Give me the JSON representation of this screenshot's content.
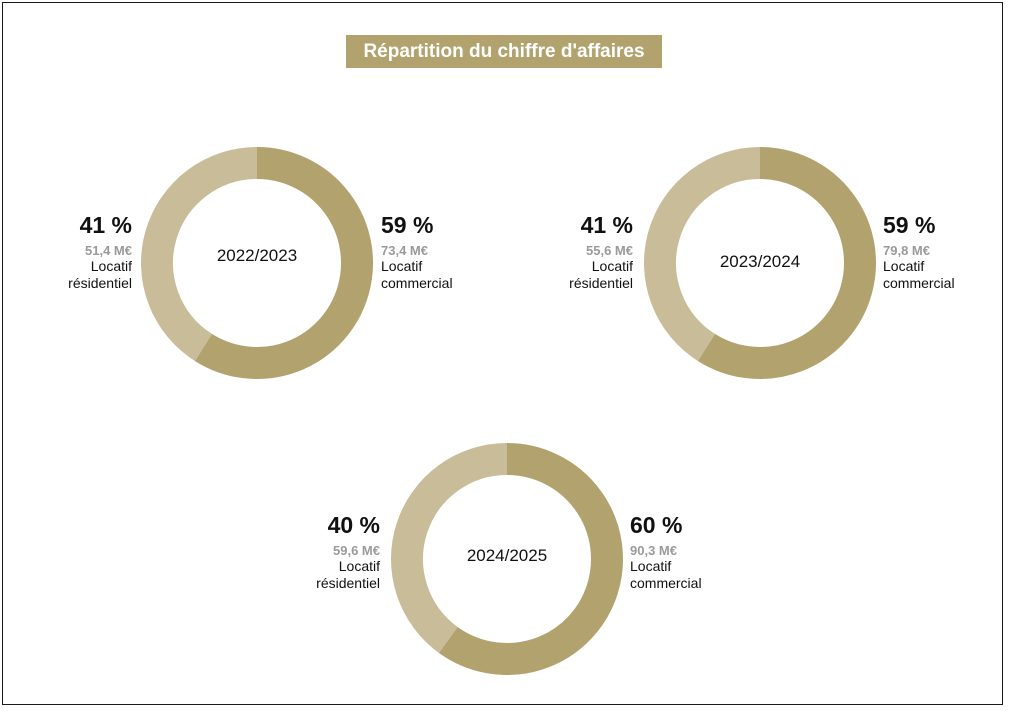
{
  "title": "Répartition du chiffre d'affaires",
  "colors": {
    "accent": "#b2a36e",
    "commercial": "#b2a36e",
    "residential": "#c9bc98",
    "title_bg": "#b2a36e"
  },
  "chart_data": [
    {
      "type": "pie",
      "center_label": "2022/2023",
      "slices": [
        {
          "label": "Locatif commercial",
          "label_lines": [
            "Locatif",
            "commercial"
          ],
          "percent": 59,
          "percent_text": "59 %",
          "amount_text": "73,4 M€"
        },
        {
          "label": "Locatif résidentiel",
          "label_lines": [
            "Locatif",
            "résidentiel"
          ],
          "percent": 41,
          "percent_text": "41 %",
          "amount_text": "51,4 M€"
        }
      ]
    },
    {
      "type": "pie",
      "center_label": "2023/2024",
      "slices": [
        {
          "label": "Locatif commercial",
          "label_lines": [
            "Locatif",
            "commercial"
          ],
          "percent": 59,
          "percent_text": "59 %",
          "amount_text": "79,8 M€"
        },
        {
          "label": "Locatif résidentiel",
          "label_lines": [
            "Locatif",
            "résidentiel"
          ],
          "percent": 41,
          "percent_text": "41 %",
          "amount_text": "55,6 M€"
        }
      ]
    },
    {
      "type": "pie",
      "center_label": "2024/2025",
      "slices": [
        {
          "label": "Locatif commercial",
          "label_lines": [
            "Locatif",
            "commercial"
          ],
          "percent": 60,
          "percent_text": "60 %",
          "amount_text": "90,3 M€"
        },
        {
          "label": "Locatif résidentiel",
          "label_lines": [
            "Locatif",
            "résidentiel"
          ],
          "percent": 40,
          "percent_text": "40 %",
          "amount_text": "59,6 M€"
        }
      ]
    }
  ]
}
